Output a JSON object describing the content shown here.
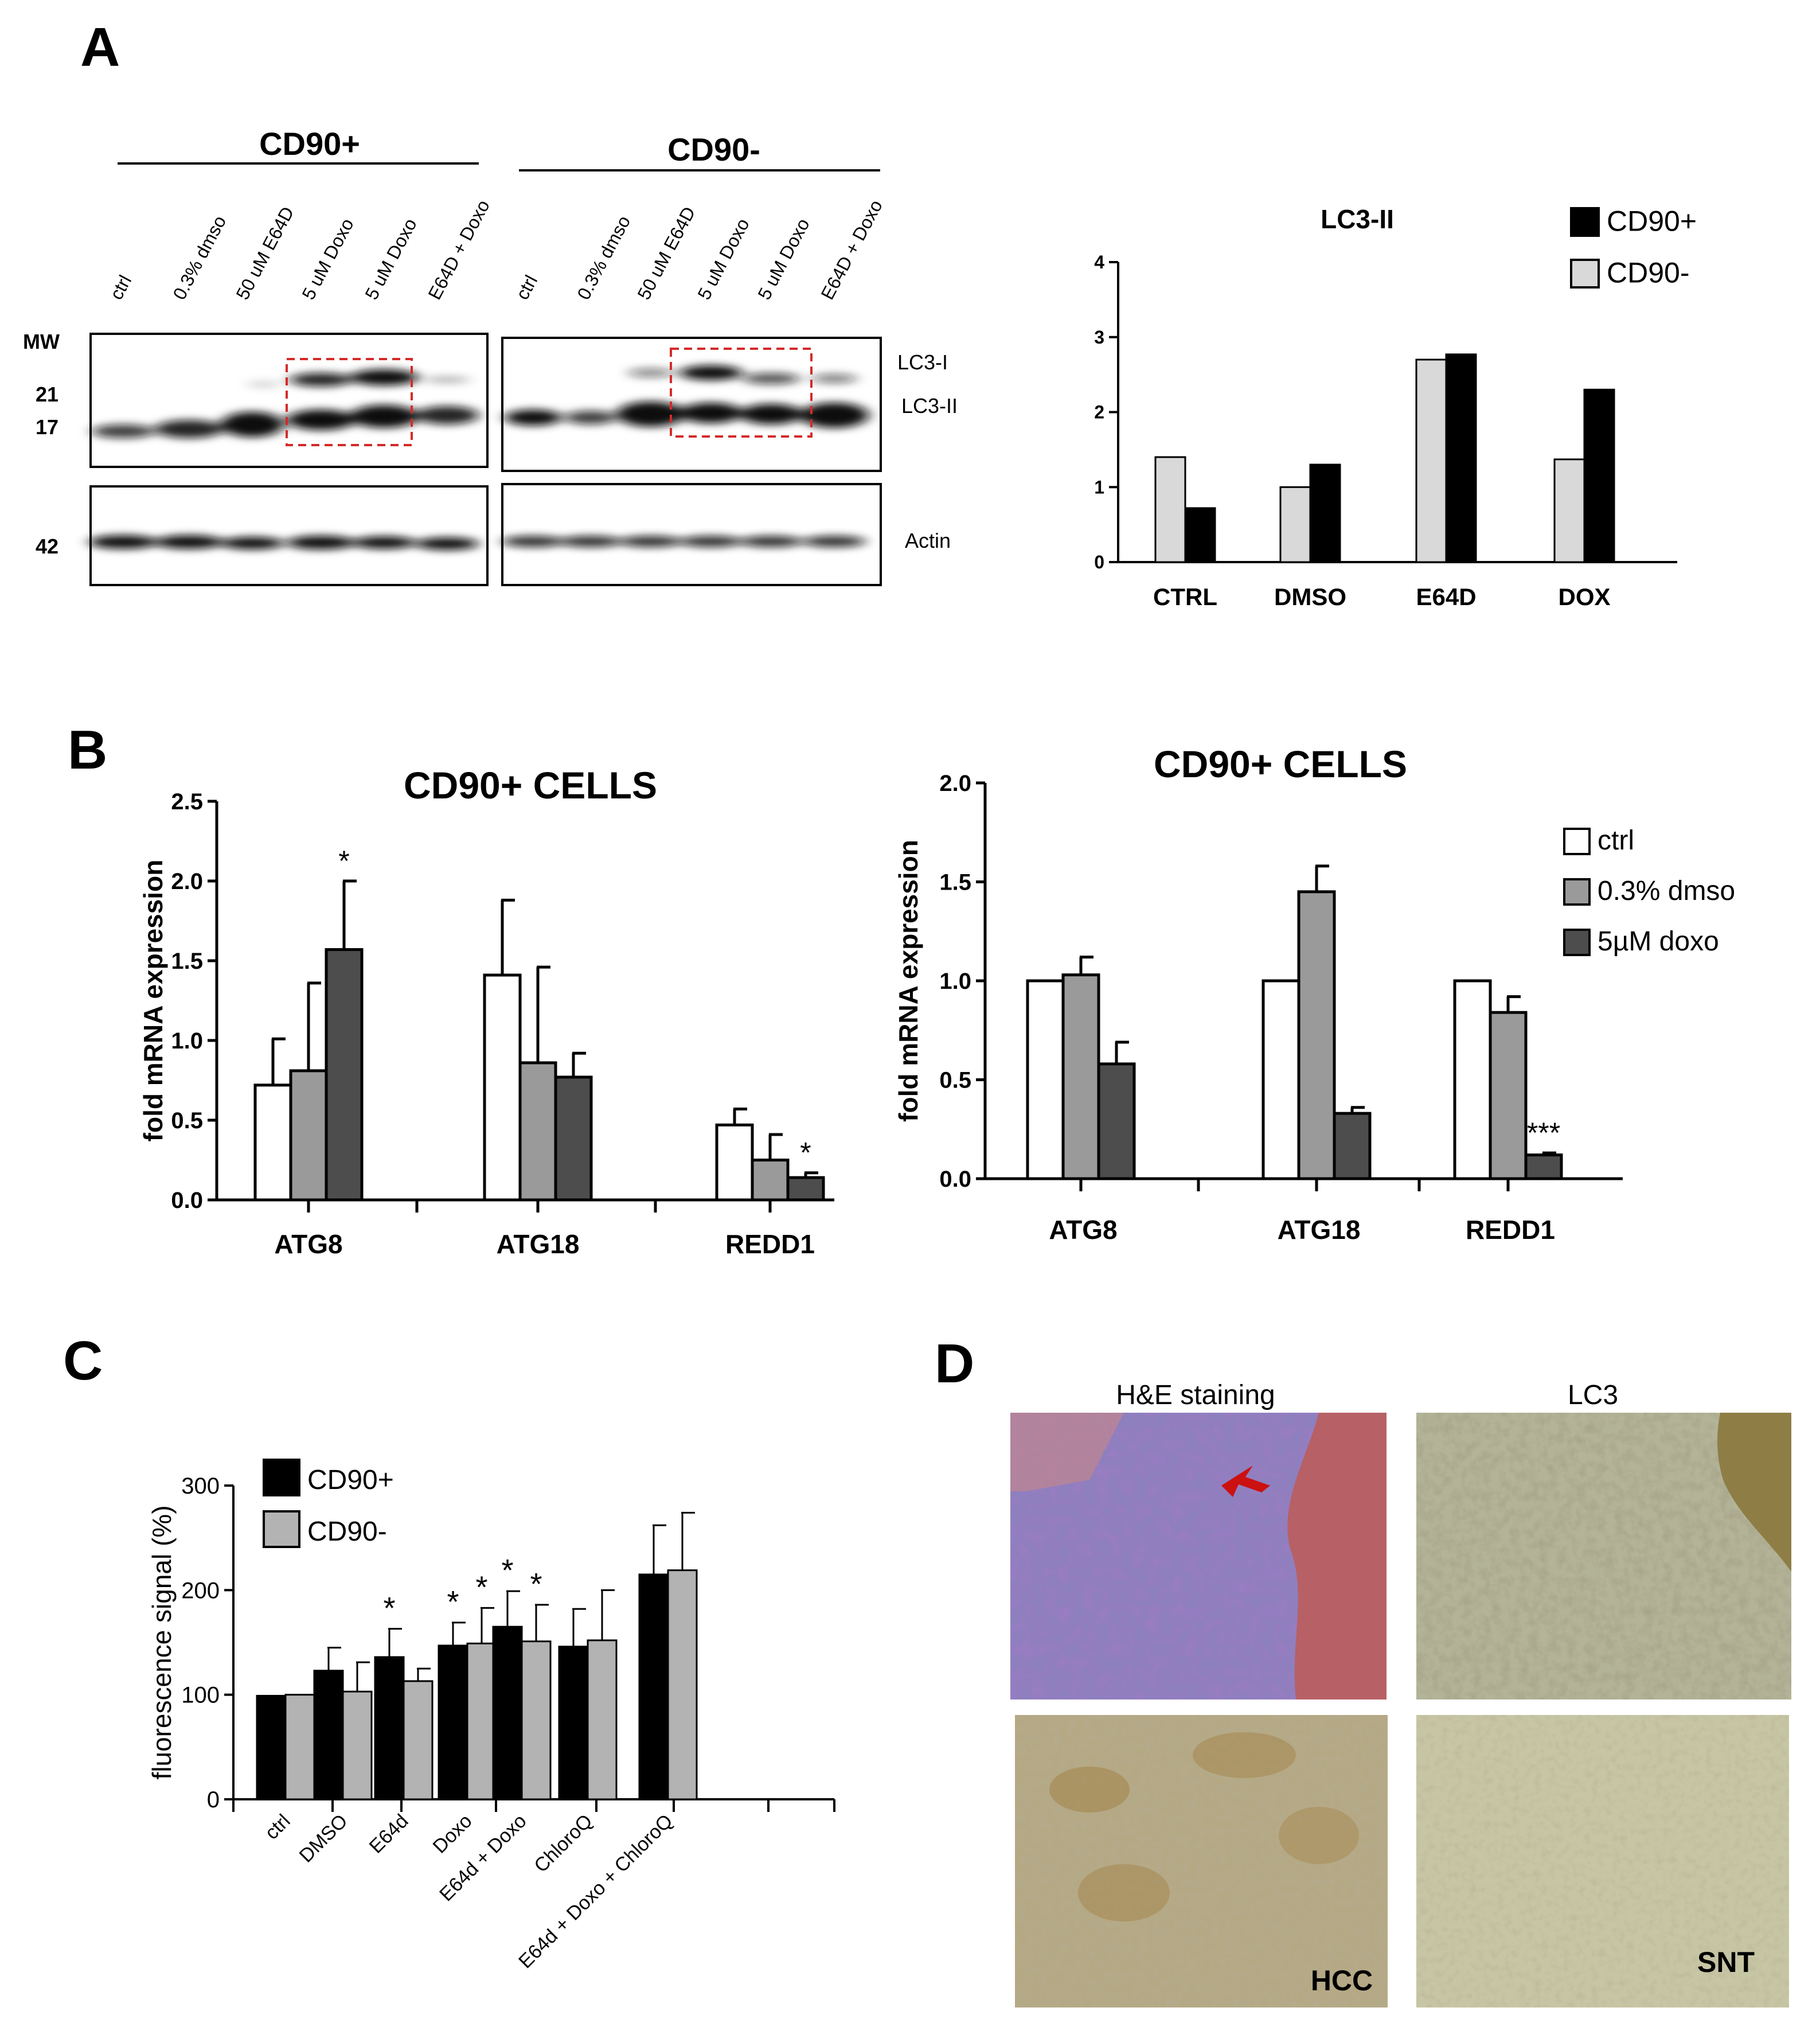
{
  "panels": {
    "A": {
      "label": "A",
      "blot": {
        "groups": [
          "CD90+",
          "CD90-"
        ],
        "lanes": [
          "ctrl",
          "0.3% dmso",
          "50 uM E64D",
          "5 uM Doxo",
          "5 uM Doxo",
          "E64D + Doxo"
        ],
        "mw_header": "MW",
        "mw_markers": [
          "21",
          "17",
          "42"
        ],
        "band_labels": [
          "LC3-I",
          "LC3-II",
          "Actin"
        ]
      }
    },
    "B": {
      "label": "B"
    },
    "C": {
      "label": "C"
    },
    "D": {
      "label": "D",
      "column_titles": [
        "H&E staining",
        "LC3"
      ],
      "row_labels": [
        "HCC",
        "SNT"
      ]
    }
  },
  "colors": {
    "cd90_plus": "#000000",
    "cd90_minus_A": "#d9d9d9",
    "cd90_minus_C": "#b3b3b3",
    "ctrl": "#ffffff",
    "dmso": "#9a9a9a",
    "doxo": "#4d4d4d",
    "box": "#d42a2a",
    "he": "#7e6cae",
    "lc3": "#a7a787"
  },
  "chart_data": [
    {
      "id": "A-LC3II",
      "type": "bar",
      "title": "LC3-II",
      "categories": [
        "CTRL",
        "DMSO",
        "E64D",
        "DOX"
      ],
      "series": [
        {
          "name": "CD90-",
          "values": [
            1.4,
            1.0,
            2.7,
            1.37
          ]
        },
        {
          "name": "CD90+",
          "values": [
            0.72,
            1.3,
            2.77,
            2.3
          ]
        }
      ],
      "legend_order": [
        "CD90+",
        "CD90-"
      ],
      "ylim": [
        0,
        4
      ],
      "yticks": [
        "0",
        "1",
        "2",
        "3",
        "4"
      ],
      "xlabel": "",
      "ylabel": "",
      "legend": "top-right"
    },
    {
      "id": "B-left",
      "type": "bar",
      "title": "CD90+ CELLS",
      "categories": [
        "ATG8",
        "ATG18",
        "REDD1"
      ],
      "series": [
        {
          "name": "ctrl",
          "values": [
            0.72,
            1.41,
            0.47
          ],
          "errors": [
            0.29,
            0.47,
            0.1
          ]
        },
        {
          "name": "0.3% dmso",
          "values": [
            0.81,
            0.86,
            0.25
          ],
          "errors": [
            0.55,
            0.6,
            0.16
          ]
        },
        {
          "name": "5µM doxo",
          "values": [
            1.57,
            0.77,
            0.14
          ],
          "errors": [
            0.43,
            0.15,
            0.03
          ]
        }
      ],
      "annotations": [
        {
          "category": "ATG8",
          "series": "5µM doxo",
          "text": "*"
        },
        {
          "category": "REDD1",
          "series": "5µM doxo",
          "text": "*"
        }
      ],
      "ylabel": "fold mRNA expression",
      "ylim": [
        0,
        2.5
      ],
      "yticks": [
        "0.0",
        "0.5",
        "1.0",
        "1.5",
        "2.0",
        "2.5"
      ]
    },
    {
      "id": "B-right",
      "type": "bar",
      "title": "CD90+ CELLS",
      "categories": [
        "ATG8",
        "ATG18",
        "REDD1"
      ],
      "series": [
        {
          "name": "ctrl",
          "values": [
            1.0,
            1.0,
            1.0
          ],
          "errors": [
            0,
            0,
            0
          ]
        },
        {
          "name": "0.3% dmso",
          "values": [
            1.03,
            1.45,
            0.84
          ],
          "errors": [
            0.09,
            0.13,
            0.08
          ]
        },
        {
          "name": "5µM doxo",
          "values": [
            0.58,
            0.33,
            0.12
          ],
          "errors": [
            0.11,
            0.03,
            0.01
          ]
        }
      ],
      "annotations": [
        {
          "category": "REDD1",
          "series": "5µM doxo",
          "text": "***"
        }
      ],
      "ylabel": "fold mRNA expression",
      "ylim": [
        0,
        2.0
      ],
      "yticks": [
        "0.0",
        "0.5",
        "1.0",
        "1.5",
        "2.0"
      ],
      "legend": "top-right"
    },
    {
      "id": "C",
      "type": "bar",
      "categories": [
        "ctrl",
        "DMSO",
        "E64d",
        "Doxo",
        "E64d + Doxo",
        "ChloroQ",
        "E64d + Doxo + ChloroQ"
      ],
      "series": [
        {
          "name": "CD90+",
          "values": [
            99,
            123,
            136,
            147,
            165,
            146,
            215
          ],
          "errors": [
            0,
            22,
            27,
            22,
            34,
            36,
            47
          ]
        },
        {
          "name": "CD90-",
          "values": [
            100,
            103,
            113,
            149,
            151,
            152,
            219
          ],
          "errors": [
            0,
            28,
            12,
            34,
            35,
            48,
            55
          ]
        }
      ],
      "annotations": [
        {
          "category": "E64d",
          "series": "CD90+",
          "text": "*"
        },
        {
          "category": "Doxo",
          "series": "CD90+",
          "text": "*"
        },
        {
          "category": "Doxo",
          "series": "CD90-",
          "text": "*"
        },
        {
          "category": "E64d + Doxo",
          "series": "CD90+",
          "text": "*"
        },
        {
          "category": "E64d + Doxo",
          "series": "CD90-",
          "text": "*"
        }
      ],
      "ylabel": "fluorescence signal (%)",
      "ylim": [
        0,
        300
      ],
      "yticks": [
        "0",
        "100",
        "200",
        "300"
      ],
      "legend": "top-left"
    }
  ]
}
